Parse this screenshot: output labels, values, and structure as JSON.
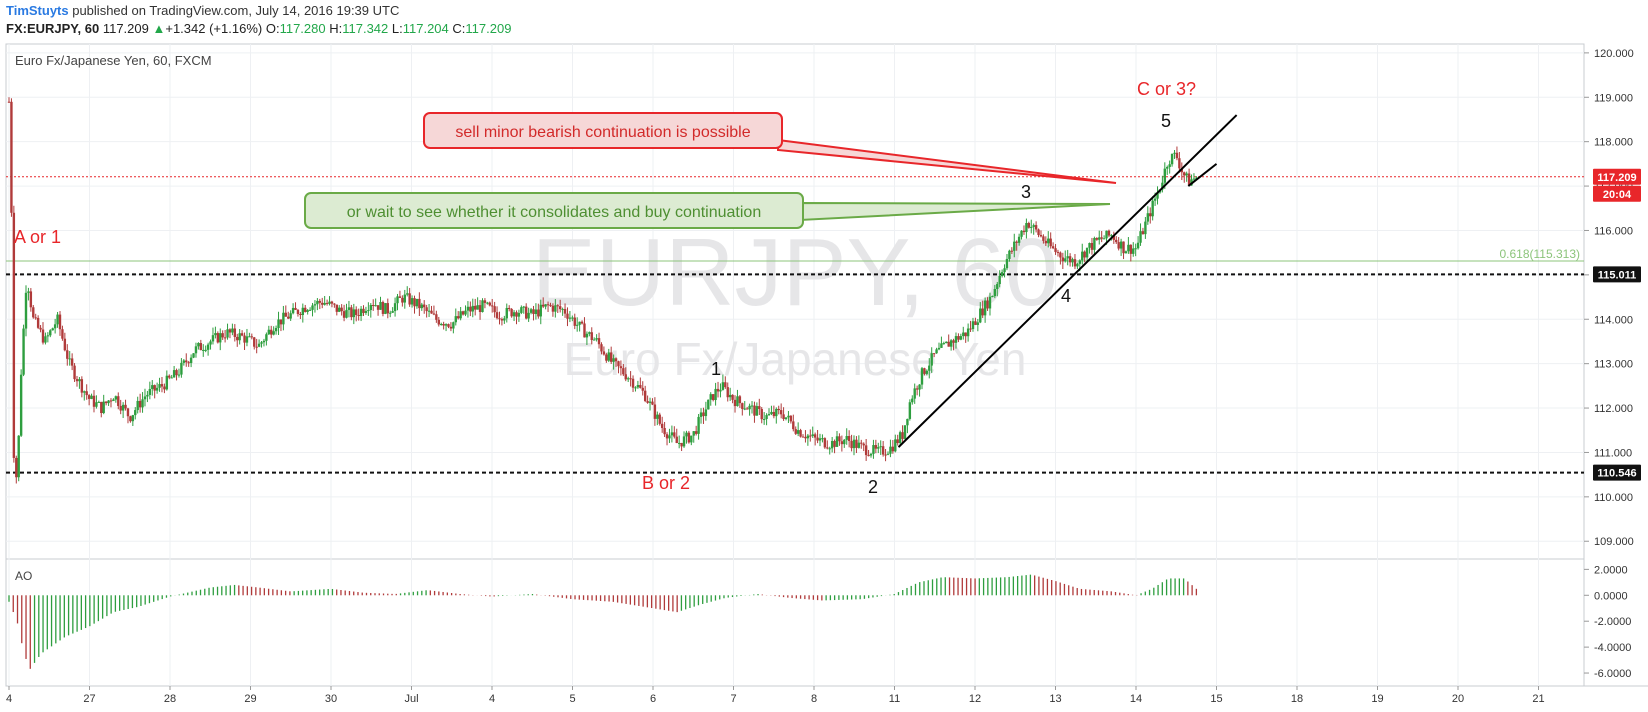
{
  "header": {
    "author": "TimStuyts",
    "published": " published on TradingView.com, July 14, 2016 19:39 UTC",
    "symbol": "FX:EURJPY, 60",
    "last": "117.209",
    "change_arrow": "▲",
    "change": "+1.342 (+1.16%)",
    "o_label": "O:",
    "o_val": "117.280",
    "h_label": "H:",
    "h_val": "117.342",
    "l_label": "L:",
    "l_val": "117.204",
    "c_label": "C:",
    "c_val": "117.209"
  },
  "chart_title": "Euro Fx/Japanese Yen, 60, FXCM",
  "watermark": {
    "line1": "EURJPY, 60",
    "line2": "Euro Fx/Japanese Yen"
  },
  "colors": {
    "up": "#2e9e3f",
    "down": "#b03a3a",
    "red_label": "#e8262a",
    "green_note": "#6aaa47"
  },
  "chart_data": {
    "type": "line",
    "price_axis": {
      "min": 108.6,
      "max": 120.2,
      "ticks": [
        "120.000",
        "119.000",
        "118.000",
        "117.000",
        "116.000",
        "115.000",
        "114.000",
        "113.000",
        "112.000",
        "111.000",
        "110.000",
        "109.000"
      ]
    },
    "x_ticks": [
      {
        "label": "4",
        "t": 0
      },
      {
        "label": "27",
        "t": 1
      },
      {
        "label": "28",
        "t": 2
      },
      {
        "label": "29",
        "t": 3
      },
      {
        "label": "30",
        "t": 4
      },
      {
        "label": "Jul",
        "t": 5
      },
      {
        "label": "4",
        "t": 6
      },
      {
        "label": "5",
        "t": 7
      },
      {
        "label": "6",
        "t": 8
      },
      {
        "label": "7",
        "t": 9
      },
      {
        "label": "8",
        "t": 10
      },
      {
        "label": "11",
        "t": 11
      },
      {
        "label": "12",
        "t": 12
      },
      {
        "label": "13",
        "t": 13
      },
      {
        "label": "14",
        "t": 14
      },
      {
        "label": "15",
        "t": 15
      },
      {
        "label": "18",
        "t": 16
      },
      {
        "label": "19",
        "t": 17
      },
      {
        "label": "20",
        "t": 18
      },
      {
        "label": "21",
        "t": 19
      }
    ],
    "price_path": [
      [
        0.0,
        118.9
      ],
      [
        0.03,
        116.5
      ],
      [
        0.06,
        111.0
      ],
      [
        0.1,
        110.3
      ],
      [
        0.15,
        112.8
      ],
      [
        0.22,
        115.0
      ],
      [
        0.3,
        114.0
      ],
      [
        0.45,
        113.5
      ],
      [
        0.6,
        114.0
      ],
      [
        0.75,
        113.0
      ],
      [
        0.9,
        112.5
      ],
      [
        1.0,
        112.2
      ],
      [
        1.15,
        112.0
      ],
      [
        1.3,
        112.3
      ],
      [
        1.5,
        111.8
      ],
      [
        1.7,
        112.3
      ],
      [
        1.9,
        112.5
      ],
      [
        2.1,
        112.8
      ],
      [
        2.3,
        113.3
      ],
      [
        2.5,
        113.5
      ],
      [
        2.7,
        113.7
      ],
      [
        2.9,
        113.6
      ],
      [
        3.1,
        113.4
      ],
      [
        3.3,
        113.9
      ],
      [
        3.5,
        114.1
      ],
      [
        3.7,
        114.3
      ],
      [
        3.9,
        114.4
      ],
      [
        4.1,
        114.2
      ],
      [
        4.3,
        114.1
      ],
      [
        4.5,
        114.4
      ],
      [
        4.7,
        114.2
      ],
      [
        4.9,
        114.5
      ],
      [
        5.1,
        114.3
      ],
      [
        5.3,
        114.0
      ],
      [
        5.5,
        113.9
      ],
      [
        5.7,
        114.2
      ],
      [
        5.9,
        114.3
      ],
      [
        6.1,
        114.1
      ],
      [
        6.3,
        114.2
      ],
      [
        6.5,
        114.1
      ],
      [
        6.7,
        114.3
      ],
      [
        6.9,
        114.2
      ],
      [
        7.1,
        113.8
      ],
      [
        7.3,
        113.5
      ],
      [
        7.5,
        113.0
      ],
      [
        7.7,
        112.7
      ],
      [
        7.9,
        112.3
      ],
      [
        8.1,
        111.6
      ],
      [
        8.3,
        111.2
      ],
      [
        8.5,
        111.4
      ],
      [
        8.6,
        111.8
      ],
      [
        8.75,
        112.3
      ],
      [
        8.85,
        112.5
      ],
      [
        9.0,
        112.2
      ],
      [
        9.2,
        112.0
      ],
      [
        9.4,
        111.8
      ],
      [
        9.6,
        111.9
      ],
      [
        9.8,
        111.5
      ],
      [
        10.0,
        111.3
      ],
      [
        10.2,
        111.2
      ],
      [
        10.4,
        111.3
      ],
      [
        10.6,
        111.1
      ],
      [
        10.8,
        111.0
      ],
      [
        10.95,
        111.1
      ],
      [
        11.1,
        111.4
      ],
      [
        11.2,
        112.2
      ],
      [
        11.35,
        112.8
      ],
      [
        11.5,
        113.2
      ],
      [
        11.7,
        113.5
      ],
      [
        11.9,
        113.7
      ],
      [
        12.05,
        114.1
      ],
      [
        12.2,
        114.5
      ],
      [
        12.35,
        115.2
      ],
      [
        12.5,
        115.7
      ],
      [
        12.65,
        116.2
      ],
      [
        12.8,
        115.9
      ],
      [
        12.95,
        115.6
      ],
      [
        13.1,
        115.4
      ],
      [
        13.25,
        115.3
      ],
      [
        13.4,
        115.6
      ],
      [
        13.55,
        115.8
      ],
      [
        13.7,
        115.9
      ],
      [
        13.85,
        115.6
      ],
      [
        14.0,
        115.6
      ],
      [
        14.15,
        116.3
      ],
      [
        14.3,
        117.0
      ],
      [
        14.4,
        117.6
      ],
      [
        14.5,
        117.7
      ],
      [
        14.58,
        117.3
      ],
      [
        14.65,
        117.1
      ],
      [
        14.75,
        117.2
      ]
    ],
    "ao_axis": {
      "min": -7.0,
      "max": 2.8,
      "ticks": [
        "2.0000",
        "0.0000",
        "-2.0000",
        "-4.0000",
        "-6.0000"
      ]
    },
    "ao_path": [
      [
        0.0,
        -0.5
      ],
      [
        0.1,
        -2.0
      ],
      [
        0.15,
        -3.5
      ],
      [
        0.25,
        -5.8
      ],
      [
        0.4,
        -4.5
      ],
      [
        0.7,
        -3.2
      ],
      [
        1.0,
        -2.4
      ],
      [
        1.3,
        -1.3
      ],
      [
        1.6,
        -0.9
      ],
      [
        2.0,
        -0.1
      ],
      [
        2.5,
        0.6
      ],
      [
        2.8,
        0.8
      ],
      [
        3.1,
        0.6
      ],
      [
        3.5,
        0.3
      ],
      [
        4.0,
        0.5
      ],
      [
        4.4,
        0.2
      ],
      [
        4.8,
        0.1
      ],
      [
        5.2,
        0.4
      ],
      [
        5.6,
        0.1
      ],
      [
        6.0,
        -0.1
      ],
      [
        6.5,
        0.1
      ],
      [
        7.0,
        -0.3
      ],
      [
        7.5,
        -0.5
      ],
      [
        8.0,
        -1.0
      ],
      [
        8.3,
        -1.3
      ],
      [
        8.6,
        -0.7
      ],
      [
        8.9,
        -0.2
      ],
      [
        9.3,
        0.1
      ],
      [
        9.7,
        -0.2
      ],
      [
        10.1,
        -0.4
      ],
      [
        10.6,
        -0.3
      ],
      [
        11.0,
        0.1
      ],
      [
        11.3,
        1.0
      ],
      [
        11.6,
        1.4
      ],
      [
        12.0,
        1.3
      ],
      [
        12.4,
        1.4
      ],
      [
        12.7,
        1.6
      ],
      [
        13.0,
        1.1
      ],
      [
        13.3,
        0.5
      ],
      [
        13.7,
        0.3
      ],
      [
        14.0,
        0.0
      ],
      [
        14.2,
        0.5
      ],
      [
        14.4,
        1.3
      ],
      [
        14.6,
        1.3
      ],
      [
        14.75,
        0.5
      ]
    ],
    "hlines": [
      {
        "price": 117.209,
        "label": "117.209",
        "style": "dotted-red"
      },
      {
        "price": 115.313,
        "label": "0.618(115.313)",
        "style": "fib"
      },
      {
        "price": 115.011,
        "label": "115.011",
        "style": "dashed-black"
      },
      {
        "price": 110.546,
        "label": "110.546",
        "style": "dashed-black"
      }
    ],
    "time_badge": "20:04",
    "ao_label": "AO",
    "trendline": {
      "from": [
        11.05,
        111.12
      ],
      "to": [
        15.25,
        118.6
      ]
    },
    "small_line": {
      "from": [
        14.65,
        117.0
      ],
      "to": [
        15.0,
        117.5
      ]
    }
  },
  "annotations": {
    "a_or_1": "A or 1",
    "b_or_2": "B or 2",
    "c_or_3": "C or 3?",
    "w1": "1",
    "w2": "2",
    "w3": "3",
    "w4": "4",
    "w5": "5",
    "sell_note": "sell minor bearish continuation is possible",
    "buy_note": "or wait to see whether it consolidates and buy continuation"
  }
}
